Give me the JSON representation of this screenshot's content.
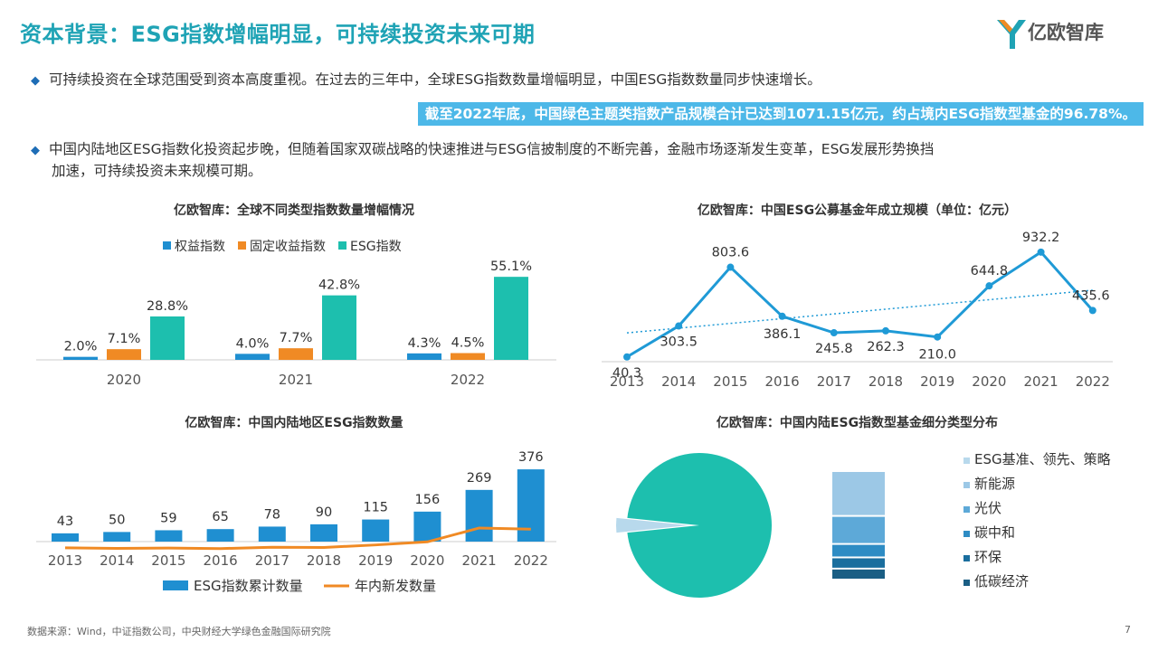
{
  "header": {
    "title": "资本背景：ESG指数增幅明显，可持续投资未来可期",
    "logo_text": "亿欧智库"
  },
  "bullets": {
    "b1": "可持续投资在全球范围受到资本高度重视。在过去的三年中，全球ESG指数数量增幅明显，中国ESG指数数量同步快速增长。",
    "highlight": "截至2022年底，中国绿色主题类指数产品规模合计已达到1071.15亿元，约占境内ESG指数型基金的96.78%。",
    "b2_line1": "中国内陆地区ESG指数化投资起步晚，但随着国家双碳战略的快速推进与ESG信披制度的不断完善，金融市场逐渐发生变革，ESG发展形势换挡",
    "b2_line2": "加速，可持续投资未来规模可期。"
  },
  "colors": {
    "title": "#1FA3B5",
    "blue": "#1F8FD1",
    "orange": "#F08A24",
    "teal": "#1DBFAE",
    "line": "#1F9AD6",
    "highlight_bg": "#4DB8E8"
  },
  "chart_data": [
    {
      "id": "global-index",
      "type": "bar",
      "title": "亿欧智库：全球不同类型指数数量增幅情况",
      "categories": [
        "2020",
        "2021",
        "2022"
      ],
      "series": [
        {
          "name": "权益指数",
          "values": [
            2.0,
            4.0,
            4.3
          ],
          "labels": [
            "2.0%",
            "4.0%",
            "4.3%"
          ],
          "color": "#1F8FD1"
        },
        {
          "name": "固定收益指数",
          "values": [
            7.1,
            7.7,
            4.5
          ],
          "labels": [
            "7.1%",
            "7.7%",
            "4.5%"
          ],
          "color": "#F08A24"
        },
        {
          "name": "ESG指数",
          "values": [
            28.8,
            42.8,
            55.1
          ],
          "labels": [
            "28.8%",
            "42.8%",
            "55.1%"
          ],
          "color": "#1DBFAE"
        }
      ],
      "ylim": [
        0,
        60
      ],
      "legend": "top"
    },
    {
      "id": "fund-scale",
      "type": "line",
      "title": "亿欧智库：中国ESG公募基金年成立规模（单位：亿元）",
      "x": [
        "2013",
        "2014",
        "2015",
        "2016",
        "2017",
        "2018",
        "2019",
        "2020",
        "2021",
        "2022"
      ],
      "values": [
        40.3,
        303.5,
        803.6,
        386.1,
        245.8,
        262.3,
        210.0,
        644.8,
        932.2,
        435.6
      ],
      "labels": [
        "40.3",
        "303.5",
        "803.6",
        "386.1",
        "245.8",
        "262.3",
        "210.0",
        "644.8",
        "932.2",
        "435.6"
      ],
      "trendline": true,
      "ylim": [
        0,
        1000
      ]
    },
    {
      "id": "mainland-count",
      "type": "bar",
      "title": "亿欧智库：中国内陆地区ESG指数数量",
      "x": [
        "2013",
        "2014",
        "2015",
        "2016",
        "2017",
        "2018",
        "2019",
        "2020",
        "2021",
        "2022"
      ],
      "series": [
        {
          "name": "ESG指数累计数量",
          "values": [
            43,
            50,
            59,
            65,
            78,
            90,
            115,
            156,
            269,
            376
          ],
          "color": "#1F8FD1"
        },
        {
          "name": "年内新发数量",
          "values": [
            10,
            7,
            9,
            6,
            13,
            12,
            25,
            41,
            113,
            107
          ],
          "color": "#F08A24"
        }
      ],
      "ylim": [
        0,
        400
      ],
      "legend": "bottom"
    },
    {
      "id": "fund-type",
      "type": "pie",
      "title": "亿欧智库：中国内陆ESG指数型基金细分类型分布",
      "slices": [
        {
          "name": "ESG基准、领先、策略",
          "value": 3.22,
          "color": "#B8D9EC"
        },
        {
          "name": "新能源",
          "value": 40,
          "color": "#9CC8E6"
        },
        {
          "name": "光伏",
          "value": 25,
          "color": "#5DA9D8"
        },
        {
          "name": "碳中和",
          "value": 12,
          "color": "#2E8CC4"
        },
        {
          "name": "环保",
          "value": 10,
          "color": "#1A6E9E"
        },
        {
          "name": "低碳经济",
          "value": 9.78,
          "color": "#1A5E84"
        }
      ],
      "main_slice_color": "#1DBFAE",
      "legend": "right"
    }
  ],
  "footer": {
    "source": "数据来源：Wind，中证指数公司，中央财经大学绿色金融国际研究院",
    "page": "7"
  }
}
